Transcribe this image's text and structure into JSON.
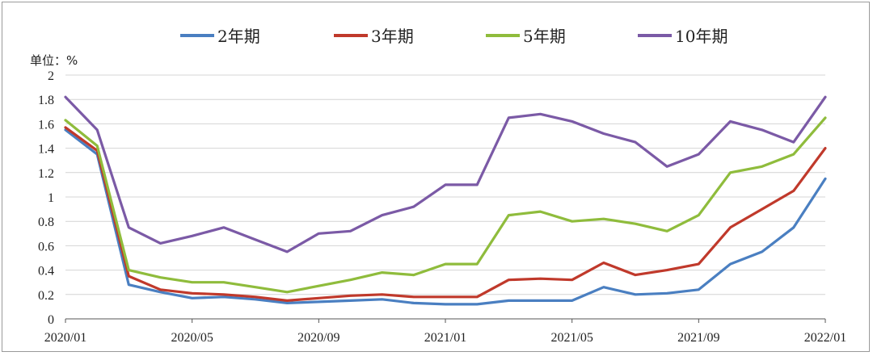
{
  "chart_data": {
    "type": "line",
    "ylabel": "单位：%",
    "ylim": [
      0,
      2
    ],
    "yticks": [
      "0",
      "0.2",
      "0.4",
      "0.6",
      "0.8",
      "1",
      "1.2",
      "1.4",
      "1.6",
      "1.8",
      "2"
    ],
    "xlim": [
      "2020/01",
      "2022/01"
    ],
    "xticks": [
      "2020/01",
      "2020/05",
      "2020/09",
      "2021/01",
      "2021/05",
      "2021/09",
      "2022/01"
    ],
    "grid": "horizontal",
    "legend_position": "top",
    "x": [
      "2020/01",
      "2020/02",
      "2020/03",
      "2020/04",
      "2020/05",
      "2020/06",
      "2020/07",
      "2020/08",
      "2020/09",
      "2020/10",
      "2020/11",
      "2020/12",
      "2021/01",
      "2021/02",
      "2021/03",
      "2021/04",
      "2021/05",
      "2021/06",
      "2021/07",
      "2021/08",
      "2021/09",
      "2021/10",
      "2021/11",
      "2021/12",
      "2022/01"
    ],
    "series": [
      {
        "name": "2年期",
        "color": "#4a7fc1",
        "values": [
          1.55,
          1.35,
          0.28,
          0.22,
          0.17,
          0.18,
          0.16,
          0.13,
          0.14,
          0.15,
          0.16,
          0.13,
          0.12,
          0.12,
          0.15,
          0.15,
          0.15,
          0.26,
          0.2,
          0.21,
          0.24,
          0.45,
          0.55,
          0.75,
          1.15
        ]
      },
      {
        "name": "3年期",
        "color": "#c0392b",
        "values": [
          1.57,
          1.38,
          0.35,
          0.24,
          0.21,
          0.2,
          0.18,
          0.15,
          0.17,
          0.19,
          0.2,
          0.18,
          0.18,
          0.18,
          0.32,
          0.33,
          0.32,
          0.46,
          0.36,
          0.4,
          0.45,
          0.75,
          0.9,
          1.05,
          1.4
        ]
      },
      {
        "name": "5年期",
        "color": "#8fbc3c",
        "values": [
          1.63,
          1.42,
          0.4,
          0.34,
          0.3,
          0.3,
          0.26,
          0.22,
          0.27,
          0.32,
          0.38,
          0.36,
          0.45,
          0.45,
          0.85,
          0.88,
          0.8,
          0.82,
          0.78,
          0.72,
          0.85,
          1.2,
          1.25,
          1.35,
          1.65
        ]
      },
      {
        "name": "10年期",
        "color": "#7b5aa6",
        "values": [
          1.82,
          1.55,
          0.75,
          0.62,
          0.68,
          0.75,
          0.65,
          0.55,
          0.7,
          0.72,
          0.85,
          0.92,
          1.1,
          1.1,
          1.65,
          1.68,
          1.62,
          1.52,
          1.45,
          1.25,
          1.35,
          1.62,
          1.55,
          1.45,
          1.82
        ]
      }
    ]
  }
}
